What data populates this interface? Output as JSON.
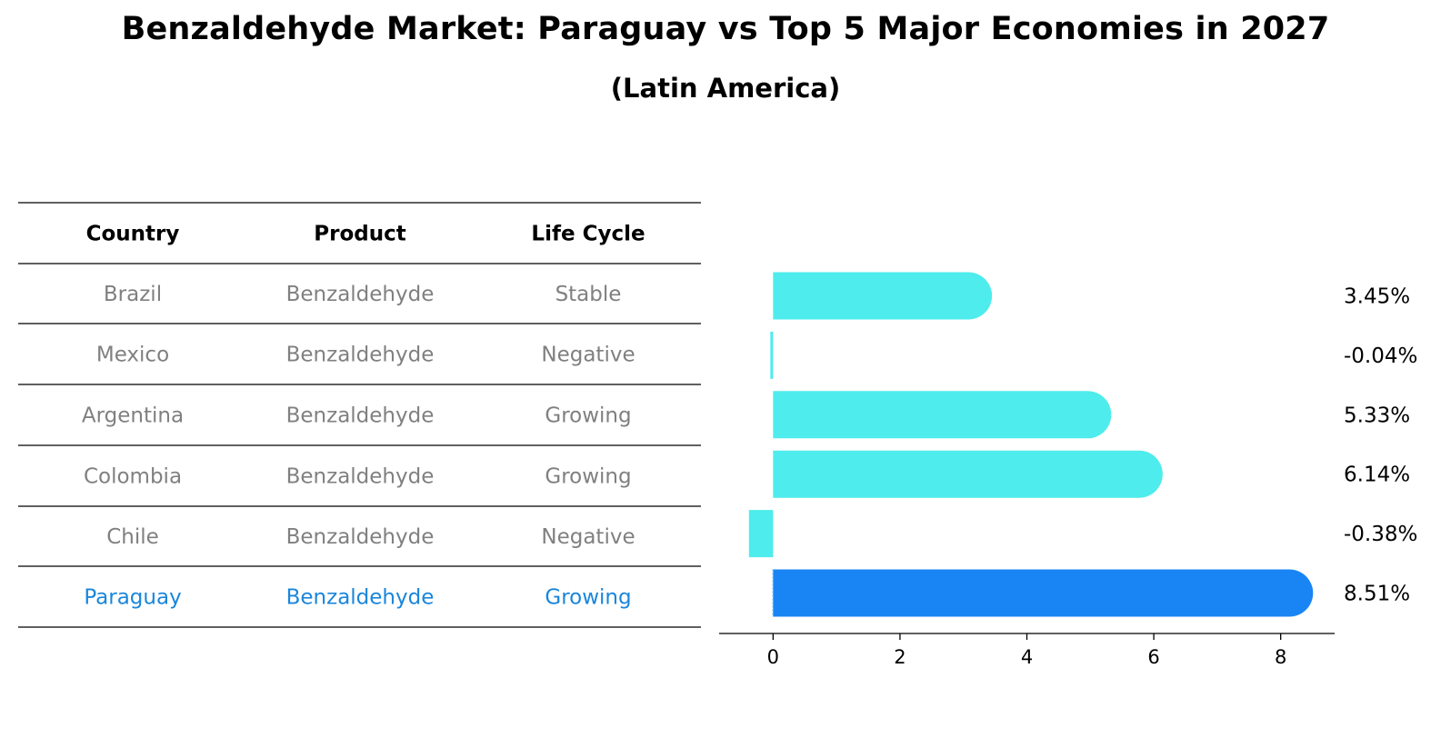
{
  "title": "Benzaldehyde Market: Paraguay vs Top 5 Major Economies in 2027",
  "subtitle": "(Latin America)",
  "colors": {
    "bar": "#4eecec",
    "highlight_bar": "#1985f5",
    "highlight_text": "#1a86db",
    "muted_text": "#808080"
  },
  "table": {
    "headers": [
      "Country",
      "Product",
      "Life Cycle"
    ],
    "rows": [
      [
        "Brazil",
        "Benzaldehyde",
        "Stable"
      ],
      [
        "Mexico",
        "Benzaldehyde",
        "Negative"
      ],
      [
        "Argentina",
        "Benzaldehyde",
        "Growing"
      ],
      [
        "Colombia",
        "Benzaldehyde",
        "Growing"
      ],
      [
        "Chile",
        "Benzaldehyde",
        "Negative"
      ],
      [
        "Paraguay",
        "Benzaldehyde",
        "Growing"
      ]
    ],
    "highlight_row": 5
  },
  "chart_data": {
    "type": "bar",
    "orientation": "horizontal",
    "categories": [
      "Brazil",
      "Mexico",
      "Argentina",
      "Colombia",
      "Chile",
      "Paraguay"
    ],
    "values": [
      3.45,
      -0.04,
      5.33,
      6.14,
      -0.38,
      8.51
    ],
    "value_labels": [
      "3.45%",
      "-0.04%",
      "5.33%",
      "6.14%",
      "-0.38%",
      "8.51%"
    ],
    "highlight": "Paraguay",
    "xlim": [
      -0.85,
      8.85
    ],
    "xticks": [
      0,
      2,
      4,
      6,
      8
    ],
    "grid": false,
    "legend": "none"
  }
}
